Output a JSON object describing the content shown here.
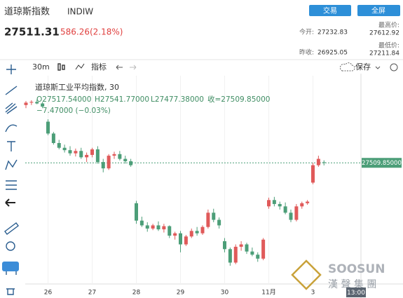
{
  "header": {
    "title": "道琼斯指数",
    "code": "INDIW",
    "price": "27511.31",
    "change": "586.26(2.18%)",
    "buttons": [
      "交易",
      "全屏"
    ],
    "stats": [
      {
        "label": "今开:",
        "value": "27232.83"
      },
      {
        "label": "最高价:",
        "value": "27612.92"
      },
      {
        "label": "昨收:",
        "value": "26925.05"
      },
      {
        "label": "最低价:",
        "value": "27211.84"
      }
    ]
  },
  "toolbar": {
    "interval": "30m",
    "indicators": "指标",
    "save": "保存"
  },
  "watermark": {
    "brand": "SOOSUN",
    "name": "漢 聲 集 團"
  },
  "chart_data": {
    "type": "candlestick",
    "legend_name": "道琼斯工业平均指数, 30",
    "ohlc_text": [
      "O27517.54000",
      "H27541.77000",
      "L27477.38000",
      "收=27509.85000"
    ],
    "change_text": "−7.47000 (−0.03%)",
    "cursor_time": "13:00",
    "up_color": "#e05a5a",
    "down_color": "#4c9e78",
    "ylim": [
      25980,
      28610
    ],
    "last_price": {
      "value": 27509.85,
      "label": "27509.85000"
    },
    "categories": [
      null,
      null,
      null,
      null,
      "26",
      null,
      null,
      null,
      null,
      null,
      null,
      null,
      "27",
      null,
      null,
      null,
      null,
      null,
      null,
      null,
      "28",
      null,
      null,
      null,
      null,
      null,
      null,
      null,
      "29",
      null,
      null,
      null,
      null,
      null,
      null,
      null,
      "30",
      null,
      null,
      null,
      null,
      null,
      null,
      null,
      "11月",
      null,
      null,
      null,
      null,
      null,
      null,
      null,
      "3",
      null,
      null
    ],
    "values": [
      [
        28240,
        28290,
        28200,
        28270
      ],
      [
        28270,
        28300,
        28240,
        28280
      ],
      [
        28280,
        28310,
        28250,
        28260
      ],
      [
        28260,
        28280,
        28200,
        28220
      ],
      [
        28030,
        28060,
        27860,
        27880
      ],
      [
        27880,
        27900,
        27740,
        27760
      ],
      [
        27760,
        27800,
        27680,
        27700
      ],
      [
        27700,
        27740,
        27640,
        27670
      ],
      [
        27670,
        27720,
        27600,
        27630
      ],
      [
        27630,
        27690,
        27590,
        27660
      ],
      [
        27660,
        27700,
        27560,
        27580
      ],
      [
        27580,
        27640,
        27520,
        27610
      ],
      [
        27610,
        27700,
        27580,
        27680
      ],
      [
        27680,
        27720,
        27500,
        27520
      ],
      [
        27520,
        27560,
        27390,
        27440
      ],
      [
        27440,
        27620,
        27420,
        27600
      ],
      [
        27600,
        27650,
        27560,
        27620
      ],
      [
        27620,
        27660,
        27540,
        27560
      ],
      [
        27560,
        27600,
        27500,
        27530
      ],
      [
        27530,
        27560,
        27460,
        27480
      ],
      [
        27000,
        27030,
        26740,
        26780
      ],
      [
        26780,
        26830,
        26700,
        26720
      ],
      [
        26720,
        26760,
        26640,
        26680
      ],
      [
        26680,
        26740,
        26660,
        26720
      ],
      [
        26720,
        26770,
        26650,
        26670
      ],
      [
        26670,
        26740,
        26630,
        26710
      ],
      [
        26710,
        26720,
        26560,
        26590
      ],
      [
        26590,
        26640,
        26540,
        26620
      ],
      [
        26620,
        26650,
        26380,
        26480
      ],
      [
        26480,
        26600,
        26460,
        26580
      ],
      [
        26580,
        26680,
        26560,
        26650
      ],
      [
        26650,
        26700,
        26590,
        26620
      ],
      [
        26620,
        26720,
        26600,
        26700
      ],
      [
        26700,
        26920,
        26680,
        26880
      ],
      [
        26880,
        26930,
        26760,
        26790
      ],
      [
        26790,
        26820,
        26680,
        26720
      ],
      [
        26520,
        26560,
        26380,
        26420
      ],
      [
        26420,
        26440,
        26210,
        26250
      ],
      [
        26250,
        26480,
        26230,
        26450
      ],
      [
        26450,
        26520,
        26400,
        26480
      ],
      [
        26480,
        26500,
        26360,
        26390
      ],
      [
        26390,
        26440,
        26330,
        26350
      ],
      [
        26350,
        26380,
        26260,
        26300
      ],
      [
        26300,
        26560,
        26280,
        26540
      ],
      [
        26960,
        27070,
        26930,
        27040
      ],
      [
        27040,
        27080,
        26960,
        26990
      ],
      [
        26990,
        27020,
        26920,
        26960
      ],
      [
        26960,
        27010,
        26860,
        26880
      ],
      [
        26880,
        26920,
        26760,
        26790
      ],
      [
        26790,
        26990,
        26770,
        26960
      ],
      [
        26960,
        27020,
        26930,
        27000
      ],
      [
        27000,
        27040,
        26980,
        27020
      ],
      [
        27260,
        27510,
        27240,
        27480
      ],
      [
        27480,
        27600,
        27460,
        27560
      ],
      [
        27517.54,
        27541.77,
        27477.38,
        27509.85
      ]
    ]
  }
}
